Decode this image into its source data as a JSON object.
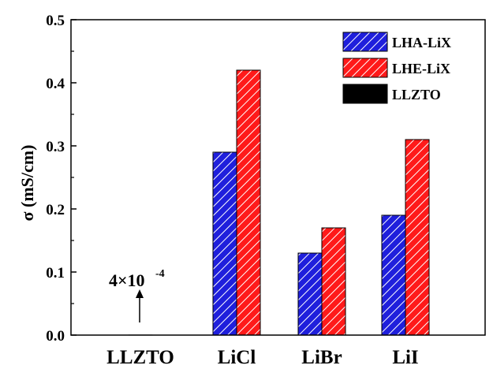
{
  "chart_data": {
    "type": "bar",
    "categories": [
      "LLZTO",
      "LiCl",
      "LiBr",
      "LiI"
    ],
    "series": [
      {
        "name": "LHA-LiX",
        "values": [
          null,
          0.29,
          0.13,
          0.19
        ],
        "color": "#1f1fdc",
        "pattern": "hatch"
      },
      {
        "name": "LHE-LiX",
        "values": [
          null,
          0.42,
          0.17,
          0.31
        ],
        "color": "#ff1a1a",
        "pattern": "hatch"
      },
      {
        "name": "LLZTO",
        "values": [
          0.0004,
          null,
          null,
          null
        ],
        "color": "#000000",
        "pattern": "solid"
      }
    ],
    "ylabel": "σ (mS/cm)",
    "xlabel": "",
    "ylim": [
      0,
      0.5
    ],
    "yticks": [
      "0.0",
      "0.1",
      "0.2",
      "0.3",
      "0.4",
      "0.5"
    ],
    "legend_position": "top-right",
    "annotation": {
      "base": "4×10",
      "exponent": "-4"
    }
  }
}
